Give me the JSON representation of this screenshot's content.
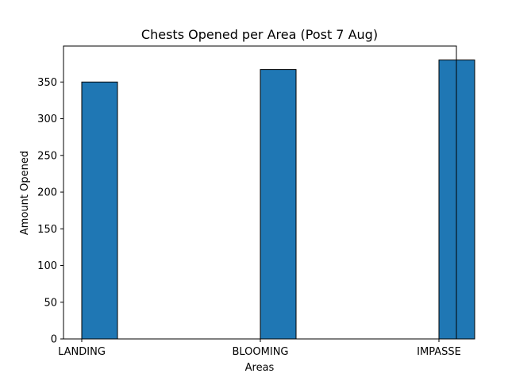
{
  "chart_data": {
    "type": "bar",
    "title": "Chests Opened per Area (Post 7 Aug)",
    "xlabel": "Areas",
    "ylabel": "Amount Opened",
    "categories": [
      "LANDING",
      "BLOOMING",
      "IMPASSE"
    ],
    "values": [
      350,
      367,
      380
    ],
    "ylim": [
      0,
      399
    ],
    "yticks": [
      0,
      50,
      100,
      150,
      200,
      250,
      300,
      350
    ],
    "grid": false,
    "legend": "none",
    "colors": {
      "bar_fill": "#1f77b4",
      "bar_edge": "#000000",
      "axis": "#000000",
      "background": "#ffffff"
    }
  }
}
